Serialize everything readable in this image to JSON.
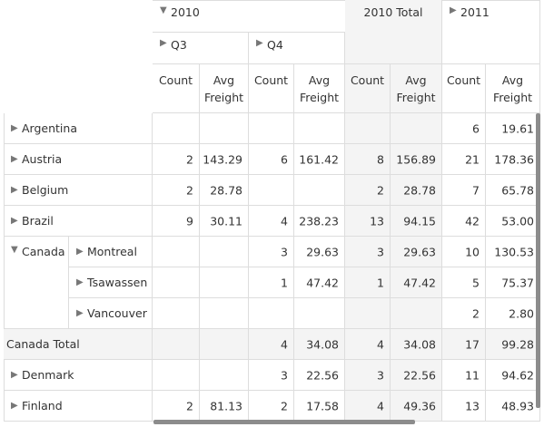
{
  "columns": {
    "year_2010": "2010",
    "year_2010_total": "2010 Total",
    "year_2011": "2011",
    "q3": "Q3",
    "q4": "Q4",
    "measure_count": "Count",
    "measure_avg_freight": "Avg Freight"
  },
  "icons": {
    "expanded": "arrow-down-icon",
    "collapsed": "arrow-right-icon"
  },
  "rows": [
    {
      "label": "Argentina",
      "values": [
        "",
        "",
        "",
        "",
        "",
        "",
        "6",
        "19.61"
      ]
    },
    {
      "label": "Austria",
      "values": [
        "2",
        "143.29",
        "6",
        "161.42",
        "8",
        "156.89",
        "21",
        "178.36"
      ]
    },
    {
      "label": "Belgium",
      "values": [
        "2",
        "28.78",
        "",
        "",
        "2",
        "28.78",
        "7",
        "65.78"
      ]
    },
    {
      "label": "Brazil",
      "values": [
        "9",
        "30.11",
        "4",
        "238.23",
        "13",
        "94.15",
        "42",
        "53.00"
      ]
    },
    {
      "label": "Canada",
      "child": "Montreal",
      "values": [
        "",
        "",
        "3",
        "29.63",
        "3",
        "29.63",
        "10",
        "130.53"
      ]
    },
    {
      "label": "",
      "child": "Tsawassen",
      "values": [
        "",
        "",
        "1",
        "47.42",
        "1",
        "47.42",
        "5",
        "75.37"
      ]
    },
    {
      "label": "",
      "child": "Vancouver",
      "values": [
        "",
        "",
        "",
        "",
        "",
        "",
        "2",
        "2.80"
      ]
    },
    {
      "label": "Canada Total",
      "total": true,
      "values": [
        "",
        "",
        "4",
        "34.08",
        "4",
        "34.08",
        "17",
        "99.28"
      ]
    },
    {
      "label": "Denmark",
      "values": [
        "",
        "",
        "3",
        "22.56",
        "3",
        "22.56",
        "11",
        "94.62"
      ]
    },
    {
      "label": "Finland",
      "values": [
        "2",
        "81.13",
        "2",
        "17.58",
        "4",
        "49.36",
        "13",
        "48.93"
      ]
    }
  ]
}
